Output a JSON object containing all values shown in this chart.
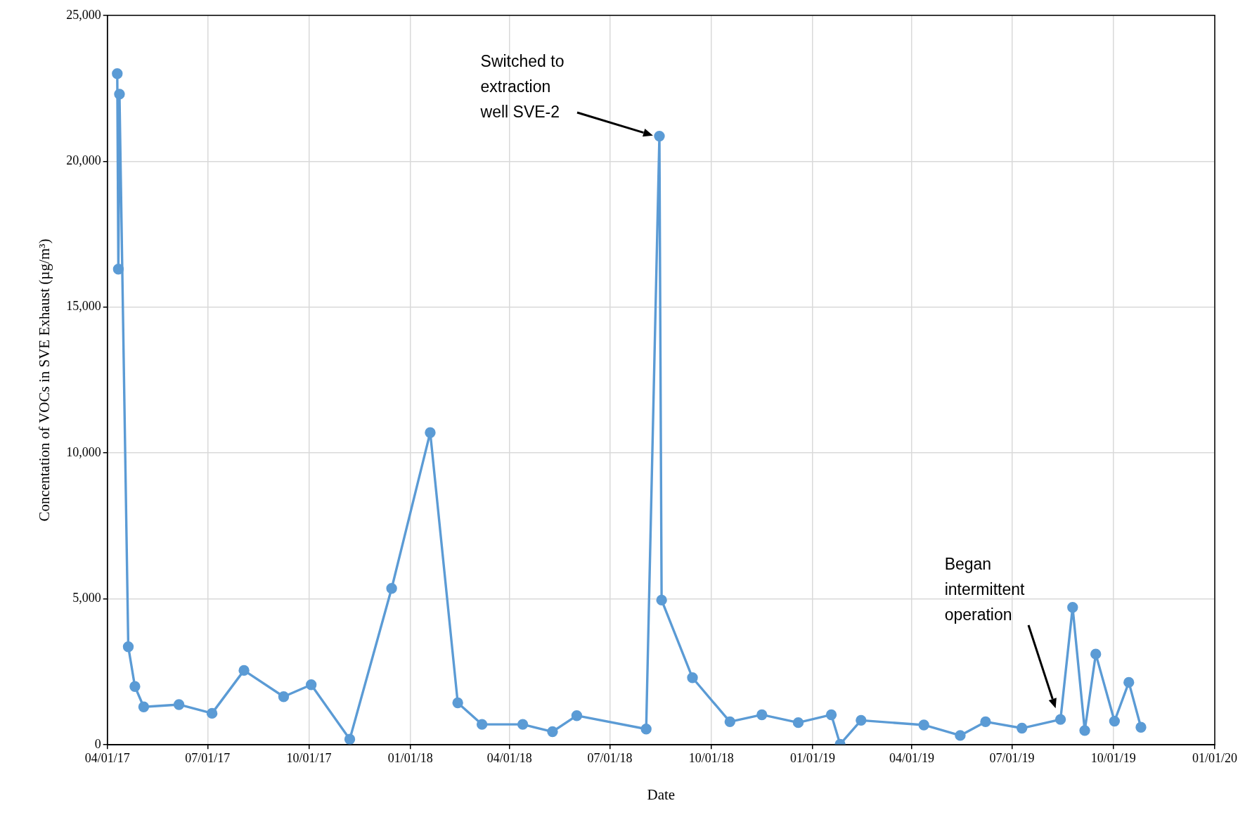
{
  "chart_data": {
    "type": "line",
    "xlabel": "Date",
    "ylabel": "Concentation of VOCs in SVE Exhaust (µg/m³)",
    "x": [
      "2017-04-10",
      "2017-04-11",
      "2017-04-12",
      "2017-04-20",
      "2017-04-26",
      "2017-05-04",
      "2017-06-05",
      "2017-07-05",
      "2017-08-03",
      "2017-09-08",
      "2017-10-03",
      "2017-11-07",
      "2017-12-15",
      "2018-01-19",
      "2018-02-13",
      "2018-03-07",
      "2018-04-13",
      "2018-05-10",
      "2018-06-01",
      "2018-08-03",
      "2018-08-15",
      "2018-08-17",
      "2018-09-14",
      "2018-10-18",
      "2018-11-16",
      "2018-12-19",
      "2019-01-18",
      "2019-01-26",
      "2019-02-14",
      "2019-04-12",
      "2019-05-15",
      "2019-06-07",
      "2019-07-10",
      "2019-08-14",
      "2019-08-25",
      "2019-09-05",
      "2019-09-15",
      "2019-10-02",
      "2019-10-15",
      "2019-10-26"
    ],
    "series": [
      {
        "color": "#5b9bd5",
        "values": [
          23000,
          16300,
          22300,
          3360,
          2000,
          1300,
          1380,
          1080,
          2550,
          1650,
          2060,
          190,
          5360,
          10700,
          1440,
          700,
          700,
          450,
          1000,
          540,
          20860,
          4960,
          2300,
          790,
          1030,
          760,
          1030,
          20,
          840,
          680,
          320,
          790,
          570,
          870,
          4710,
          490,
          3110,
          810,
          2140,
          600
        ]
      }
    ],
    "xlim": [
      "2017-04-01",
      "2020-01-01"
    ],
    "xticks": [
      {
        "value": "2017-04-01",
        "label": "04/01/17"
      },
      {
        "value": "2017-07-01",
        "label": "07/01/17"
      },
      {
        "value": "2017-10-01",
        "label": "10/01/17"
      },
      {
        "value": "2018-01-01",
        "label": "01/01/18"
      },
      {
        "value": "2018-04-01",
        "label": "04/01/18"
      },
      {
        "value": "2018-07-01",
        "label": "07/01/18"
      },
      {
        "value": "2018-10-01",
        "label": "10/01/18"
      },
      {
        "value": "2019-01-01",
        "label": "01/01/19"
      },
      {
        "value": "2019-04-01",
        "label": "04/01/19"
      },
      {
        "value": "2019-07-01",
        "label": "07/01/19"
      },
      {
        "value": "2019-10-01",
        "label": "10/01/19"
      },
      {
        "value": "2020-01-01",
        "label": "01/01/20"
      }
    ],
    "ylim": [
      0,
      25000
    ],
    "yticks": [
      {
        "value": 0,
        "label": "0"
      },
      {
        "value": 5000,
        "label": "5,000"
      },
      {
        "value": 10000,
        "label": "10,000"
      },
      {
        "value": 15000,
        "label": "15,000"
      },
      {
        "value": 20000,
        "label": "20,000"
      },
      {
        "value": 25000,
        "label": "25,000"
      }
    ],
    "grid": true,
    "legend": false,
    "marker": "circle",
    "line_style": "solid",
    "annotations": [
      "Switched to extraction well SVE-2",
      "Began intermittent operation"
    ]
  }
}
